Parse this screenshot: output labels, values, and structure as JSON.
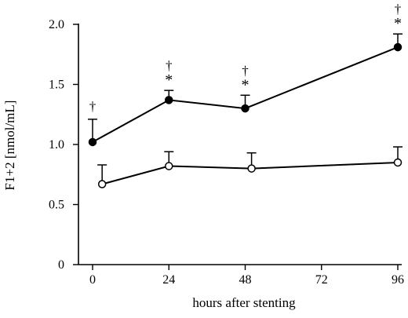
{
  "chart_data": {
    "type": "line",
    "xlabel": "hours after stenting",
    "ylabel": "F1+2 [nmol/mL]",
    "xlim": [
      0,
      96
    ],
    "ylim": [
      0,
      2.0
    ],
    "x_ticks": [
      0,
      24,
      48,
      72,
      96
    ],
    "y_ticks": [
      0,
      0.5,
      1.0,
      1.5,
      2.0
    ],
    "x_tick_labels": [
      "0",
      "24",
      "48",
      "72",
      "96"
    ],
    "y_tick_labels": [
      "0",
      "0.5",
      "1.0",
      "1.5",
      "2.0"
    ],
    "grid": false,
    "series": [
      {
        "marker": "filled-circle",
        "x": [
          0,
          24,
          48,
          96
        ],
        "values": [
          1.02,
          1.37,
          1.3,
          1.81
        ],
        "error_upper": [
          0.19,
          0.08,
          0.11,
          0.11
        ],
        "annotations": [
          {
            "index": 0,
            "symbols": [
              "†"
            ]
          },
          {
            "index": 1,
            "symbols": [
              "†",
              "*"
            ]
          },
          {
            "index": 2,
            "symbols": [
              "†",
              "*"
            ]
          },
          {
            "index": 3,
            "symbols": [
              "†",
              "*"
            ]
          }
        ]
      },
      {
        "marker": "open-circle",
        "x": [
          3,
          24,
          50,
          96
        ],
        "values": [
          0.67,
          0.82,
          0.8,
          0.85
        ],
        "error_upper": [
          0.16,
          0.12,
          0.13,
          0.13
        ]
      }
    ]
  }
}
